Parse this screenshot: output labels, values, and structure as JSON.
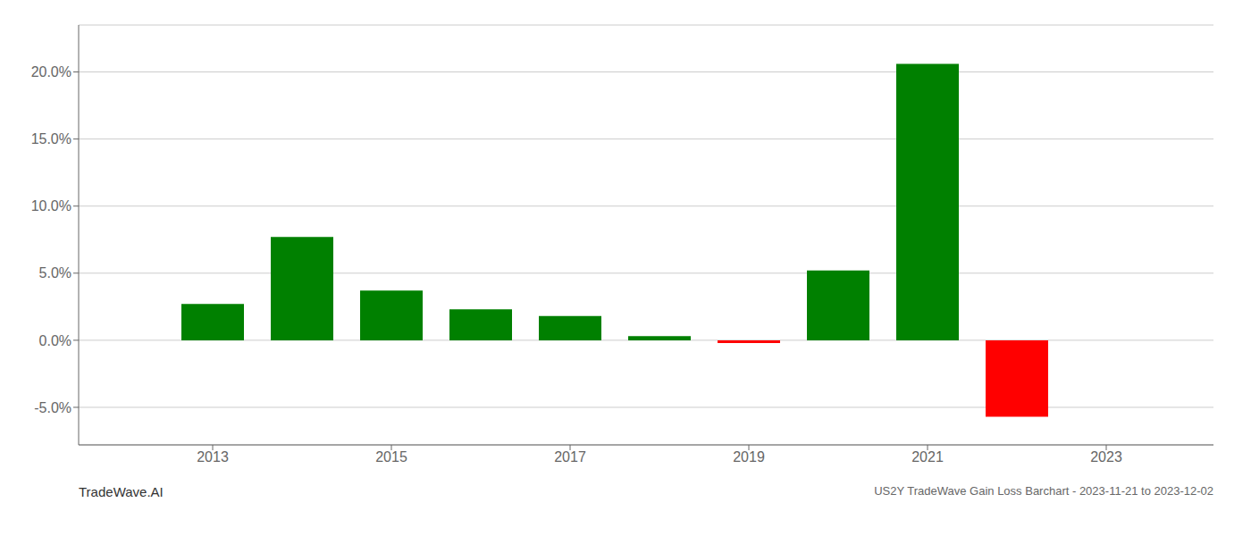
{
  "chart_data": {
    "type": "bar",
    "title": "US2Y TradeWave Gain Loss Barchart - 2023-11-21 to 2023-12-02",
    "annotations": [
      "TradeWave.AI"
    ],
    "x": [
      2013,
      2014,
      2015,
      2016,
      2017,
      2018,
      2019,
      2020,
      2021,
      2022
    ],
    "values": [
      0.027,
      0.077,
      0.037,
      0.023,
      0.018,
      0.003,
      -0.002,
      0.052,
      0.206,
      -0.057
    ],
    "colors": [
      "#008000",
      "#008000",
      "#008000",
      "#008000",
      "#008000",
      "#008000",
      "#ff0000",
      "#008000",
      "#008000",
      "#ff0000"
    ],
    "xlim": [
      2011.5,
      2024.2
    ],
    "xticks": [
      2013,
      2015,
      2017,
      2019,
      2021,
      2023
    ],
    "ylim": [
      -0.078,
      0.235
    ],
    "yticks": [
      {
        "value": -0.05,
        "label": "-5.0%"
      },
      {
        "value": 0.0,
        "label": "0.0%"
      },
      {
        "value": 0.05,
        "label": "5.0%"
      },
      {
        "value": 0.1,
        "label": "10.0%"
      },
      {
        "value": 0.15,
        "label": "15.0%"
      },
      {
        "value": 0.2,
        "label": "20.0%"
      }
    ],
    "grid": "y"
  }
}
